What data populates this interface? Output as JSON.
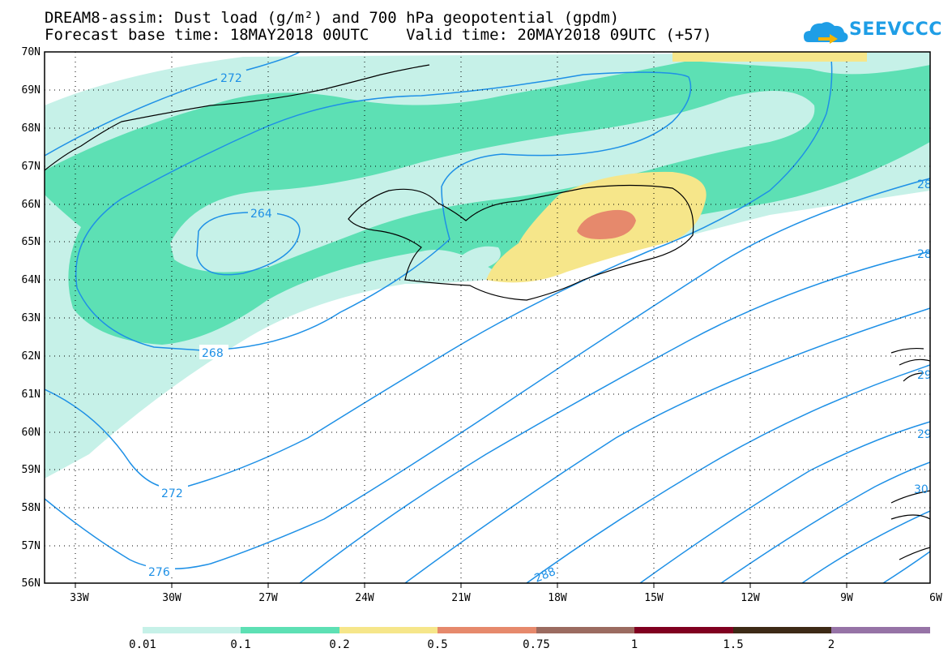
{
  "title": {
    "line1": "DREAM8-assim: Dust load (g/m²) and 700 hPa geopotential (gpdm)",
    "line2": "Forecast base time: 18MAY2018 00UTC    Valid time: 20MAY2018 09UTC (+57)"
  },
  "logo": {
    "text": "SEEVCCC"
  },
  "lat_labels": [
    "70N",
    "69N",
    "68N",
    "67N",
    "66N",
    "65N",
    "64N",
    "63N",
    "62N",
    "61N",
    "60N",
    "59N",
    "58N",
    "57N",
    "56N"
  ],
  "lon_labels": [
    "33W",
    "30W",
    "27W",
    "24W",
    "21W",
    "18W",
    "15W",
    "12W",
    "9W",
    "6W"
  ],
  "contour_labels": [
    "272",
    "264",
    "268",
    "272",
    "276",
    "288",
    "28",
    "28",
    "29",
    "29",
    "30"
  ],
  "colorbar": {
    "colors": [
      "#c6f1e8",
      "#5de0b4",
      "#f6e68a",
      "#e6896c",
      "#9b6b60",
      "#800020",
      "#3d2a16",
      "#9673a6"
    ],
    "labels": [
      "0.01",
      "0.1",
      "0.2",
      "0.5",
      "0.75",
      "1",
      "1.5",
      "2"
    ]
  }
}
